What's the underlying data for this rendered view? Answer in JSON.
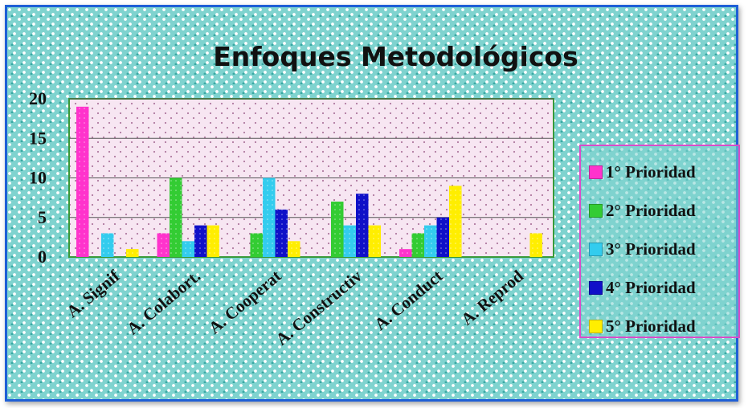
{
  "chart_data": {
    "type": "bar",
    "title": "Enfoques Metodológicos",
    "categories": [
      "A. Signif",
      "A. Colabort.",
      "A. Cooperat",
      "A. Constructiv",
      "A. Conduct",
      "A. Reprod"
    ],
    "ylim": [
      0,
      20
    ],
    "yticks": [
      0,
      5,
      10,
      15,
      20
    ],
    "grid": true,
    "legend_position": "right",
    "series": [
      {
        "name": "1° Prioridad",
        "color": "#ff33cc",
        "values": [
          19,
          3,
          0,
          0,
          1,
          0
        ]
      },
      {
        "name": "2° Prioridad",
        "color": "#33cc33",
        "values": [
          0,
          10,
          3,
          7,
          3,
          0
        ]
      },
      {
        "name": "3° Prioridad",
        "color": "#33ccee",
        "values": [
          3,
          2,
          10,
          4,
          4,
          0
        ]
      },
      {
        "name": "4° Prioridad",
        "color": "#1010c8",
        "values": [
          0,
          4,
          6,
          8,
          5,
          0
        ]
      },
      {
        "name": "5° Prioridad",
        "color": "#ffee00",
        "values": [
          1,
          4,
          2,
          4,
          9,
          3
        ]
      }
    ]
  }
}
